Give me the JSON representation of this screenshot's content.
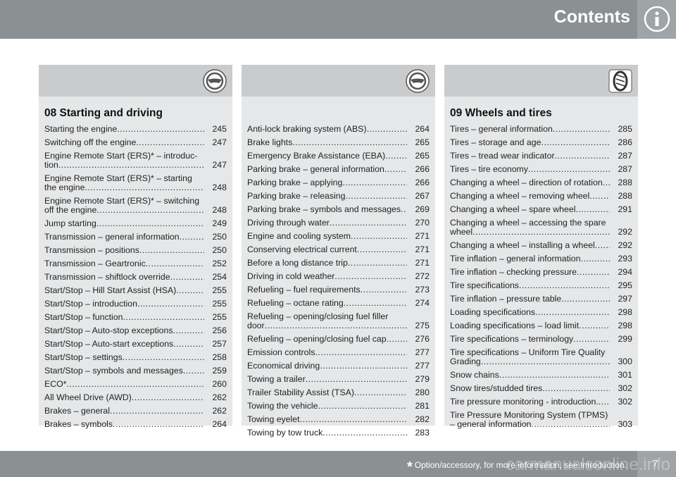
{
  "header": {
    "title": "Contents"
  },
  "columns": [
    {
      "title": "08 Starting and driving",
      "entries": [
        {
          "title": "Starting the engine",
          "page": "245"
        },
        {
          "title": "Switching off the engine",
          "page": "247"
        },
        {
          "title": "Engine Remote Start (ERS)* – introduc­tion",
          "page": "247"
        },
        {
          "title": "Engine Remote Start (ERS)* – starting the engine",
          "page": "248"
        },
        {
          "title": "Engine Remote Start (ERS)* – switching off the engine",
          "page": "248"
        },
        {
          "title": "Jump starting",
          "page": "249"
        },
        {
          "title": "Transmission – general information",
          "page": "250"
        },
        {
          "title": "Transmission – positions",
          "page": "250"
        },
        {
          "title": "Transmission – Geartronic",
          "page": "252"
        },
        {
          "title": "Transmission – shiftlock override",
          "page": "254"
        },
        {
          "title": "Start/Stop – Hill Start Assist (HSA)",
          "page": "255"
        },
        {
          "title": "Start/Stop – introduction",
          "page": "255"
        },
        {
          "title": "Start/Stop – function",
          "page": "255"
        },
        {
          "title": "Start/Stop – Auto-stop exceptions",
          "page": "256"
        },
        {
          "title": "Start/Stop – Auto-start exceptions",
          "page": "257"
        },
        {
          "title": "Start/Stop – settings",
          "page": "258"
        },
        {
          "title": "Start/Stop – symbols and messages",
          "page": "259"
        },
        {
          "title": "ECO*",
          "page": "260"
        },
        {
          "title": "All Wheel Drive (AWD)",
          "page": "262"
        },
        {
          "title": "Brakes – general",
          "page": "262"
        },
        {
          "title": "Brakes – symbols",
          "page": "264"
        }
      ]
    },
    {
      "entries": [
        {
          "title": "Anti-lock braking system (ABS)",
          "page": "264"
        },
        {
          "title": "Brake lights",
          "page": "265"
        },
        {
          "title": "Emergency Brake Assistance (EBA)",
          "page": "265"
        },
        {
          "title": "Parking brake – general information",
          "page": "266"
        },
        {
          "title": "Parking brake – applying",
          "page": "266"
        },
        {
          "title": "Parking brake – releasing",
          "page": "267"
        },
        {
          "title": "Parking brake – symbols and messages",
          "page": "269"
        },
        {
          "title": "Driving through water",
          "page": "270"
        },
        {
          "title": "Engine and cooling system",
          "page": "271"
        },
        {
          "title": "Conserving electrical current",
          "page": "271"
        },
        {
          "title": "Before a long distance trip",
          "page": "271"
        },
        {
          "title": "Driving in cold weather",
          "page": "272"
        },
        {
          "title": "Refueling – fuel requirements",
          "page": "273"
        },
        {
          "title": "Refueling – octane rating",
          "page": "274"
        },
        {
          "title": "Refueling – opening/closing fuel filler door",
          "page": "275"
        },
        {
          "title": "Refueling – opening/closing fuel cap",
          "page": "276"
        },
        {
          "title": "Emission controls",
          "page": "277"
        },
        {
          "title": "Economical driving",
          "page": "277"
        },
        {
          "title": "Towing a trailer",
          "page": "279"
        },
        {
          "title": "Trailer Stability Assist (TSA)",
          "page": "280"
        },
        {
          "title": "Towing the vehicle",
          "page": "281"
        },
        {
          "title": "Towing eyelet",
          "page": "282"
        },
        {
          "title": "Towing by tow truck",
          "page": "283"
        }
      ]
    },
    {
      "title": "09 Wheels and tires",
      "entries": [
        {
          "title": "Tires – general information",
          "page": "285"
        },
        {
          "title": "Tires – storage and age",
          "page": "286"
        },
        {
          "title": "Tires – tread wear indicator",
          "page": "287"
        },
        {
          "title": "Tires – tire economy",
          "page": "287"
        },
        {
          "title": "Changing a wheel – direction of rotation",
          "page": "288"
        },
        {
          "title": "Changing a wheel – removing wheel",
          "page": "288"
        },
        {
          "title": "Changing a wheel – spare wheel",
          "page": "291"
        },
        {
          "title": "Changing a wheel – accessing the spare wheel",
          "page": "292"
        },
        {
          "title": "Changing a wheel – installing a wheel",
          "page": "292"
        },
        {
          "title": "Tire inflation – general information",
          "page": "293"
        },
        {
          "title": "Tire inflation – checking pressure",
          "page": "294"
        },
        {
          "title": "Tire specifications",
          "page": "295"
        },
        {
          "title": "Tire inflation – pressure table",
          "page": "297"
        },
        {
          "title": "Loading specifications",
          "page": "298"
        },
        {
          "title": "Loading specifications – load limit",
          "page": "298"
        },
        {
          "title": "Tire specifications – terminology",
          "page": "299"
        },
        {
          "title": "Tire specifications – Uniform Tire Quality Grading",
          "page": "300"
        },
        {
          "title": "Snow chains",
          "page": "301"
        },
        {
          "title": "Snow tires/studded tires",
          "page": "302"
        },
        {
          "title": "Tire pressure monitoring - introduction.",
          "page": "302"
        },
        {
          "title": "Tire Pressure Monitoring System (TPMS) – general information",
          "page": "303"
        }
      ]
    }
  ],
  "footer": {
    "asterisk": "*",
    "note": "Option/accessory, for more information, see Introduction.",
    "page": "7",
    "watermark": "carmanualsonline.info"
  }
}
